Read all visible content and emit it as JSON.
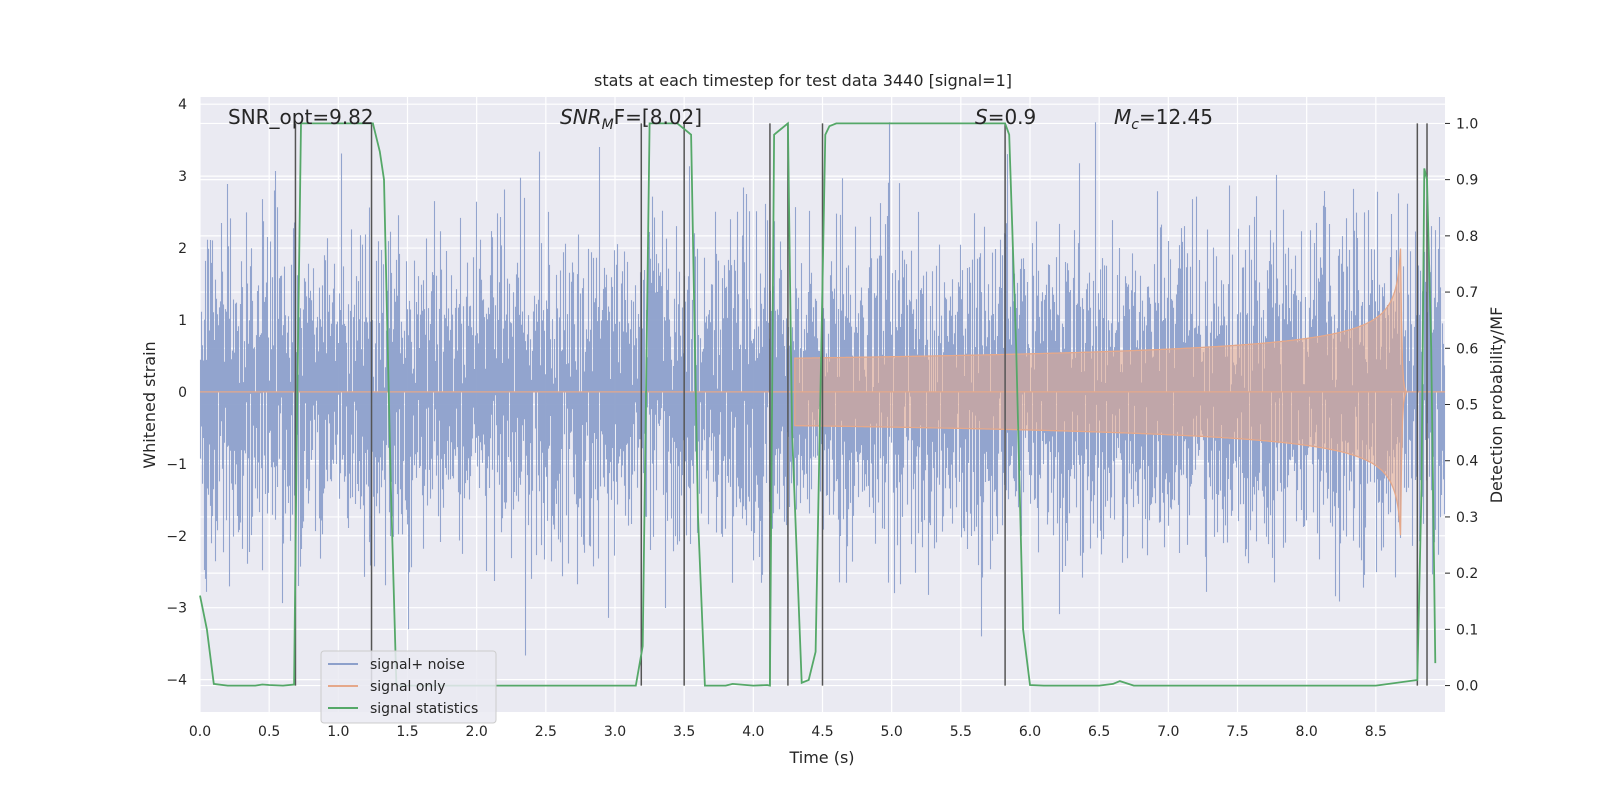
{
  "chart_data": {
    "type": "line",
    "title": "stats at each timestep for test data 3440 [signal=1]",
    "xlabel": "Time (s)",
    "ylabel": "Whitened strain",
    "y2label": "Detection probability/MF",
    "xlim": [
      0,
      9
    ],
    "ylim": [
      -4.45,
      4.1
    ],
    "y2lim": [
      -0.047,
      1.047
    ],
    "xticks": [
      0.0,
      0.5,
      1.0,
      1.5,
      2.0,
      2.5,
      3.0,
      3.5,
      4.0,
      4.5,
      5.0,
      5.5,
      6.0,
      6.5,
      7.0,
      7.5,
      8.0,
      8.5
    ],
    "yticks": [
      -4,
      -3,
      -2,
      -1,
      0,
      1,
      2,
      3,
      4
    ],
    "y2ticks": [
      0.0,
      0.1,
      0.2,
      0.3,
      0.4,
      0.5,
      0.6,
      0.7,
      0.8,
      0.9,
      1.0
    ],
    "grid": true,
    "legend_position": "lower-left",
    "annotations": {
      "snr_opt": {
        "prefix": "SNR_opt=",
        "value": "9.82"
      },
      "snr_mf": {
        "base": "SNR",
        "sub": "M",
        "tail": "F=[8.02]"
      },
      "s": {
        "base": "S",
        "tail": "=0.9"
      },
      "mc": {
        "base": "M",
        "sub": "c",
        "tail": "=12.45"
      }
    },
    "series": [
      {
        "name": "signal+ noise",
        "color": "#8da0cb",
        "noise_sigma": 1.0,
        "noise_max": 3.75,
        "noise_min": -4.0
      },
      {
        "name": "signal only",
        "color": "#e5a88a",
        "chirp": {
          "start_time": 4.3,
          "merger_time": 8.68,
          "peak_amplitude": 2.05,
          "end_time": 8.72
        }
      },
      {
        "name": "signal statistics",
        "color": "#55a868",
        "x": [
          0.0,
          0.05,
          0.1,
          0.2,
          0.4,
          0.45,
          0.5,
          0.6,
          0.68,
          0.7,
          0.73,
          0.75,
          1.0,
          1.25,
          1.3,
          1.33,
          1.38,
          1.42,
          1.5,
          2.0,
          2.5,
          3.0,
          3.15,
          3.2,
          3.25,
          3.3,
          3.45,
          3.5,
          3.55,
          3.6,
          3.65,
          3.7,
          3.8,
          3.85,
          4.0,
          4.1,
          4.12,
          4.15,
          4.2,
          4.25,
          4.28,
          4.35,
          4.4,
          4.45,
          4.48,
          4.52,
          4.55,
          4.6,
          5.0,
          5.5,
          5.82,
          5.85,
          5.9,
          5.95,
          6.0,
          6.1,
          6.5,
          6.6,
          6.65,
          6.75,
          7.0,
          7.5,
          8.0,
          8.5,
          8.8,
          8.83,
          8.85,
          8.87,
          8.9,
          8.93
        ],
        "values": [
          0.16,
          0.1,
          0.003,
          0.0,
          0.0,
          0.002,
          0.001,
          0.0,
          0.002,
          0.45,
          1.0,
          1.0,
          1.0,
          1.0,
          0.95,
          0.9,
          0.35,
          0.0,
          0.0,
          0.0,
          0.0,
          0.0,
          0.0,
          0.07,
          1.0,
          1.0,
          1.0,
          0.99,
          0.98,
          0.3,
          0.0,
          0.0,
          0.0,
          0.003,
          0.0,
          0.001,
          0.0,
          0.98,
          0.99,
          1.0,
          0.45,
          0.005,
          0.01,
          0.06,
          0.45,
          0.98,
          0.995,
          1.0,
          1.0,
          1.0,
          1.0,
          0.98,
          0.6,
          0.1,
          0.001,
          0.0,
          0.0,
          0.003,
          0.008,
          0.0,
          0.0,
          0.0,
          0.0,
          0.0,
          0.01,
          0.35,
          0.92,
          0.9,
          0.6,
          0.04
        ],
        "axis": "right"
      }
    ],
    "vertical_lines": [
      0.69,
      1.24,
      3.19,
      3.5,
      4.12,
      4.25,
      4.5,
      5.82,
      8.8,
      8.87
    ]
  }
}
